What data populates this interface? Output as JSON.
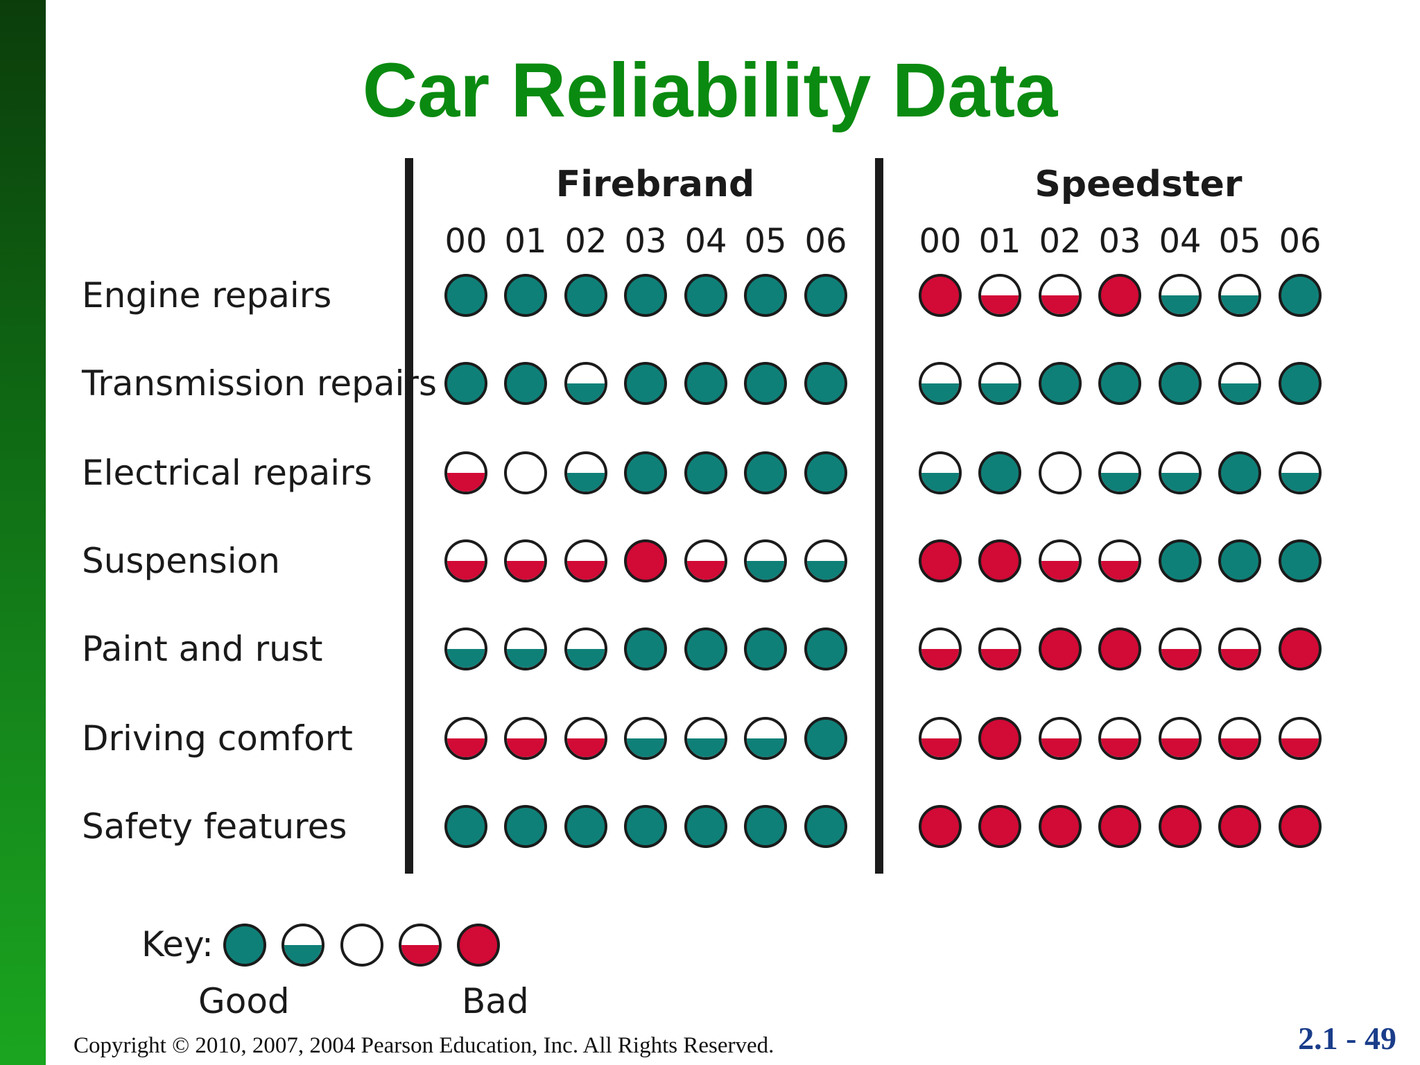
{
  "slide": {
    "title": "Car Reliability Data",
    "copyright": "Copyright © 2010, 2007, 2004 Pearson Education, Inc. All Rights Reserved.",
    "page_number": "2.1 - 49"
  },
  "colors": {
    "title": "#0a8a10",
    "good": "#0f8078",
    "bad": "#d20a36",
    "page_number": "#1a3d8a"
  },
  "brands": [
    "Firebrand",
    "Speedster"
  ],
  "years": [
    "00",
    "01",
    "02",
    "03",
    "04",
    "05",
    "06"
  ],
  "rows": [
    {
      "label": "Engine repairs",
      "firebrand": [
        1,
        1,
        1,
        1,
        1,
        1,
        1
      ],
      "speedster": [
        5,
        4,
        4,
        5,
        2,
        2,
        1
      ]
    },
    {
      "label": "Transmission repairs",
      "firebrand": [
        1,
        1,
        2,
        1,
        1,
        1,
        1
      ],
      "speedster": [
        2,
        2,
        1,
        1,
        1,
        2,
        1
      ]
    },
    {
      "label": "Electrical repairs",
      "firebrand": [
        4,
        3,
        2,
        1,
        1,
        1,
        1
      ],
      "speedster": [
        2,
        1,
        3,
        2,
        2,
        1,
        2
      ]
    },
    {
      "label": "Suspension",
      "firebrand": [
        4,
        4,
        4,
        5,
        4,
        2,
        2
      ],
      "speedster": [
        5,
        5,
        4,
        4,
        1,
        1,
        1
      ]
    },
    {
      "label": "Paint and rust",
      "firebrand": [
        2,
        2,
        2,
        1,
        1,
        1,
        1
      ],
      "speedster": [
        4,
        4,
        5,
        5,
        4,
        4,
        5
      ]
    },
    {
      "label": "Driving comfort",
      "firebrand": [
        4,
        4,
        4,
        2,
        2,
        2,
        1
      ],
      "speedster": [
        4,
        5,
        4,
        4,
        4,
        4,
        4
      ]
    },
    {
      "label": "Safety features",
      "firebrand": [
        1,
        1,
        1,
        1,
        1,
        1,
        1
      ],
      "speedster": [
        5,
        5,
        5,
        5,
        5,
        5,
        5
      ]
    }
  ],
  "rating_scale": {
    "1": "good",
    "2": "above-average",
    "3": "average",
    "4": "below-average",
    "5": "bad"
  },
  "key": {
    "label": "Key:",
    "levels": [
      1,
      2,
      3,
      4,
      5
    ],
    "good_label": "Good",
    "bad_label": "Bad"
  }
}
